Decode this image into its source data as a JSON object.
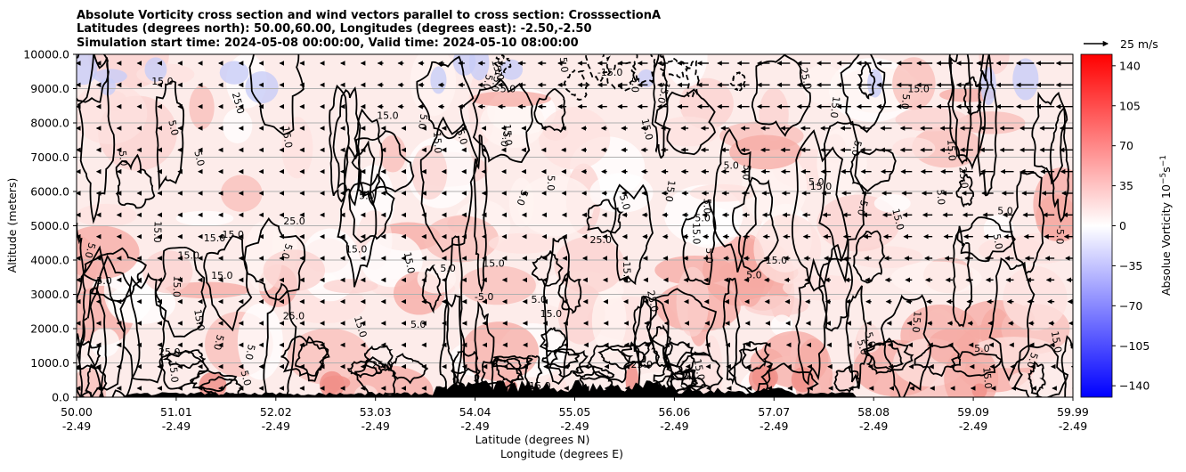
{
  "chart_data": {
    "type": "heatmap",
    "title_lines": [
      "Absolute Vorticity cross section and wind vectors parallel to cross section: CrosssectionA",
      "Latitudes (degrees north): 50.00,60.00, Longitudes (degrees east): -2.50,-2.50",
      "Simulation start time: 2024-05-08 00:00:00, Valid time: 2024-05-10 08:00:00"
    ],
    "xlabel_lines": [
      "Latitude (degrees N)",
      "Longitude (degrees E)"
    ],
    "ylabel": "Altitude (meters)",
    "ylim": [
      0,
      10000
    ],
    "yticks": [
      0,
      1000,
      2000,
      3000,
      4000,
      5000,
      6000,
      7000,
      8000,
      9000,
      10000
    ],
    "ytick_labels": [
      "0.0",
      "1000.0",
      "2000.0",
      "3000.0",
      "4000.0",
      "5000.0",
      "6000.0",
      "7000.0",
      "8000.0",
      "9000.0",
      "10000.0"
    ],
    "xticks_lat": [
      "50.00",
      "51.01",
      "52.02",
      "53.03",
      "54.04",
      "55.05",
      "56.06",
      "57.07",
      "58.08",
      "59.09",
      "59.99"
    ],
    "xticks_lon": [
      "-2.49",
      "-2.49",
      "-2.49",
      "-2.49",
      "-2.49",
      "-2.49",
      "-2.49",
      "-2.49",
      "-2.49",
      "-2.49",
      "-2.49"
    ],
    "grid": "horizontal",
    "colorbar": {
      "label": "Absolue Vorticity 10",
      "label_sup": "−5",
      "label_unit": "s",
      "label_unit_sup": "−1",
      "range": [
        -150,
        150
      ],
      "ticks": [
        140,
        105,
        70,
        35,
        0,
        -35,
        -70,
        -105,
        -140
      ],
      "tick_labels": [
        "140",
        "105",
        "70",
        "35",
        "0",
        "−35",
        "−70",
        "−105",
        "−140"
      ],
      "colormap": "bwr",
      "colors": {
        "negative": "#0000ff",
        "zero": "#ffffff",
        "positive": "#ff0000"
      }
    },
    "quiver_key": {
      "label": "25 m/s",
      "value": 25
    },
    "contour_levels": [
      -15,
      -5,
      5,
      15,
      25
    ],
    "contour_label_texts": [
      "5.0",
      "15.0",
      "25.0",
      "-5.0",
      "-15.0"
    ],
    "wind_vectors": {
      "direction": "toward decreasing latitude",
      "max_speed_ms": 25,
      "strong_band_altitude_m": [
        4000,
        10000
      ],
      "strong_band_latitude": [
        54.5,
        59.9
      ]
    },
    "terrain_color": "#000000"
  }
}
